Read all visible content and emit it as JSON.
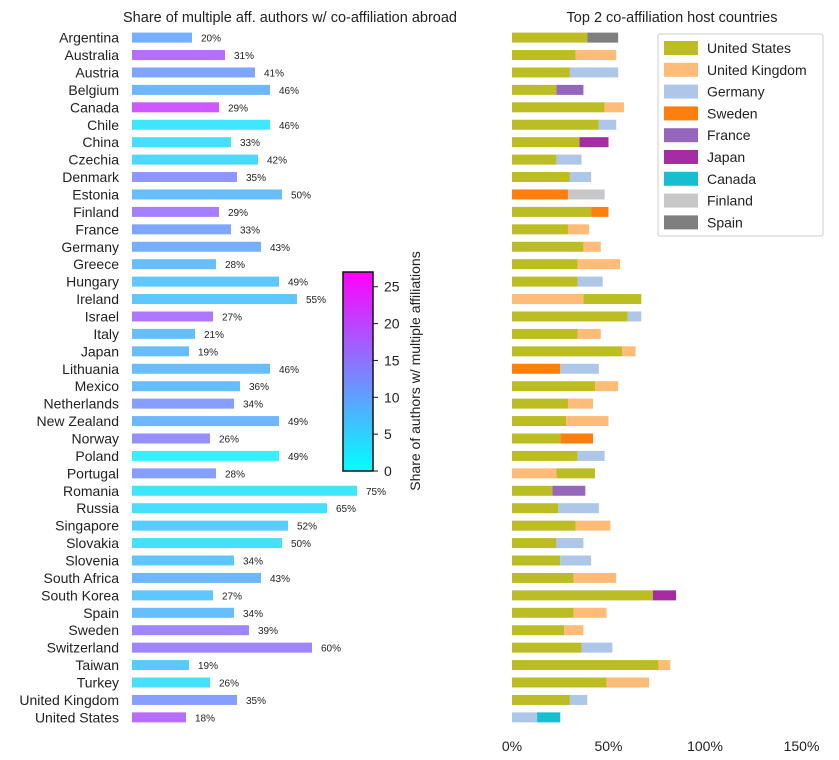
{
  "chart_data": [
    {
      "type": "bar",
      "orientation": "horizontal",
      "title": "Share of multiple aff. authors w/ co-affiliation abroad",
      "categories": [
        "Argentina",
        "Australia",
        "Austria",
        "Belgium",
        "Canada",
        "Chile",
        "China",
        "Czechia",
        "Denmark",
        "Estonia",
        "Finland",
        "France",
        "Germany",
        "Greece",
        "Hungary",
        "Ireland",
        "Israel",
        "Italy",
        "Japan",
        "Lithuania",
        "Mexico",
        "Netherlands",
        "New Zealand",
        "Norway",
        "Poland",
        "Portugal",
        "Romania",
        "Russia",
        "Singapore",
        "Slovakia",
        "Slovenia",
        "South Africa",
        "South Korea",
        "Spain",
        "Sweden",
        "Switzerland",
        "Taiwan",
        "Turkey",
        "United Kingdom",
        "United States"
      ],
      "values": [
        20,
        31,
        41,
        46,
        29,
        46,
        33,
        42,
        35,
        50,
        29,
        33,
        43,
        28,
        49,
        55,
        27,
        21,
        19,
        46,
        36,
        34,
        49,
        26,
        49,
        28,
        75,
        65,
        52,
        50,
        34,
        43,
        27,
        34,
        39,
        60,
        19,
        26,
        35,
        18
      ],
      "labels": [
        "20%",
        "31%",
        "41%",
        "46%",
        "29%",
        "46%",
        "33%",
        "42%",
        "35%",
        "50%",
        "29%",
        "33%",
        "43%",
        "28%",
        "49%",
        "55%",
        "27%",
        "21%",
        "19%",
        "46%",
        "36%",
        "34%",
        "49%",
        "26%",
        "49%",
        "28%",
        "75%",
        "65%",
        "52%",
        "50%",
        "34%",
        "43%",
        "27%",
        "34%",
        "39%",
        "60%",
        "19%",
        "26%",
        "35%",
        "18%"
      ],
      "color_values": [
        10,
        18,
        11,
        9,
        21,
        3,
        4,
        5,
        13,
        8,
        16,
        11,
        10,
        8,
        7,
        7,
        17,
        8,
        8,
        8,
        8,
        12,
        9,
        14,
        2,
        12,
        3,
        4,
        6,
        4,
        7,
        9,
        7,
        8,
        15,
        15,
        7,
        4,
        12,
        18
      ],
      "colorbar": {
        "label": "Share of authors w/ multiple affiliations",
        "ticks": [
          0,
          5,
          10,
          15,
          20,
          25
        ],
        "tick_labels": [
          "0",
          "5",
          "10",
          "15",
          "20",
          "25"
        ],
        "range": [
          0,
          27
        ],
        "colors": [
          "#00ffff",
          "#ff00ff"
        ]
      }
    },
    {
      "type": "bar",
      "orientation": "horizontal",
      "stacked": true,
      "title": "Top 2 co-affiliation host countries",
      "xlim": [
        0,
        150
      ],
      "x_ticks": [
        0,
        50,
        100,
        150
      ],
      "x_tick_labels": [
        "0%",
        "50%",
        "100%",
        "150%"
      ],
      "legend_position": "top-right",
      "legend": [
        {
          "name": "United States",
          "color": "#bcbd22"
        },
        {
          "name": "United Kingdom",
          "color": "#ffbb78"
        },
        {
          "name": "Germany",
          "color": "#aec7e8"
        },
        {
          "name": "Sweden",
          "color": "#ff7f0e"
        },
        {
          "name": "France",
          "color": "#9467bd"
        },
        {
          "name": "Japan",
          "color": "#a52ca2"
        },
        {
          "name": "Canada",
          "color": "#17becf"
        },
        {
          "name": "Finland",
          "color": "#c7c7c7"
        },
        {
          "name": "Spain",
          "color": "#7f7f7f"
        }
      ],
      "rows": [
        {
          "country": "Argentina",
          "segments": [
            {
              "host": "United States",
              "value": 39
            },
            {
              "host": "Spain",
              "value": 16
            }
          ]
        },
        {
          "country": "Australia",
          "segments": [
            {
              "host": "United States",
              "value": 33
            },
            {
              "host": "United Kingdom",
              "value": 21
            }
          ]
        },
        {
          "country": "Austria",
          "segments": [
            {
              "host": "United States",
              "value": 30
            },
            {
              "host": "Germany",
              "value": 25
            }
          ]
        },
        {
          "country": "Belgium",
          "segments": [
            {
              "host": "United States",
              "value": 23
            },
            {
              "host": "France",
              "value": 14
            }
          ]
        },
        {
          "country": "Canada",
          "segments": [
            {
              "host": "United States",
              "value": 48
            },
            {
              "host": "United Kingdom",
              "value": 10
            }
          ]
        },
        {
          "country": "Chile",
          "segments": [
            {
              "host": "United States",
              "value": 45
            },
            {
              "host": "Germany",
              "value": 9
            }
          ]
        },
        {
          "country": "China",
          "segments": [
            {
              "host": "United States",
              "value": 35
            },
            {
              "host": "Japan",
              "value": 15
            }
          ]
        },
        {
          "country": "Czechia",
          "segments": [
            {
              "host": "United States",
              "value": 23
            },
            {
              "host": "Germany",
              "value": 13
            }
          ]
        },
        {
          "country": "Denmark",
          "segments": [
            {
              "host": "United States",
              "value": 30
            },
            {
              "host": "Germany",
              "value": 11
            }
          ]
        },
        {
          "country": "Estonia",
          "segments": [
            {
              "host": "Sweden",
              "value": 29
            },
            {
              "host": "Finland",
              "value": 19
            }
          ]
        },
        {
          "country": "Finland",
          "segments": [
            {
              "host": "United States",
              "value": 41
            },
            {
              "host": "Sweden",
              "value": 9
            }
          ]
        },
        {
          "country": "France",
          "segments": [
            {
              "host": "United States",
              "value": 29
            },
            {
              "host": "United Kingdom",
              "value": 11
            }
          ]
        },
        {
          "country": "Germany",
          "segments": [
            {
              "host": "United States",
              "value": 37
            },
            {
              "host": "United Kingdom",
              "value": 9
            }
          ]
        },
        {
          "country": "Greece",
          "segments": [
            {
              "host": "United States",
              "value": 34
            },
            {
              "host": "United Kingdom",
              "value": 22
            }
          ]
        },
        {
          "country": "Hungary",
          "segments": [
            {
              "host": "United States",
              "value": 34
            },
            {
              "host": "Germany",
              "value": 13
            }
          ]
        },
        {
          "country": "Ireland",
          "segments": [
            {
              "host": "United Kingdom",
              "value": 37
            },
            {
              "host": "United States",
              "value": 30
            }
          ]
        },
        {
          "country": "Israel",
          "segments": [
            {
              "host": "United States",
              "value": 60
            },
            {
              "host": "Germany",
              "value": 7
            }
          ]
        },
        {
          "country": "Italy",
          "segments": [
            {
              "host": "United States",
              "value": 34
            },
            {
              "host": "United Kingdom",
              "value": 12
            }
          ]
        },
        {
          "country": "Japan",
          "segments": [
            {
              "host": "United States",
              "value": 57
            },
            {
              "host": "United Kingdom",
              "value": 7
            }
          ]
        },
        {
          "country": "Lithuania",
          "segments": [
            {
              "host": "Sweden",
              "value": 25
            },
            {
              "host": "Germany",
              "value": 20
            }
          ]
        },
        {
          "country": "Mexico",
          "segments": [
            {
              "host": "United States",
              "value": 43
            },
            {
              "host": "United Kingdom",
              "value": 12
            }
          ]
        },
        {
          "country": "Netherlands",
          "segments": [
            {
              "host": "United States",
              "value": 29
            },
            {
              "host": "United Kingdom",
              "value": 13
            }
          ]
        },
        {
          "country": "New Zealand",
          "segments": [
            {
              "host": "United States",
              "value": 28
            },
            {
              "host": "United Kingdom",
              "value": 22
            }
          ]
        },
        {
          "country": "Norway",
          "segments": [
            {
              "host": "United States",
              "value": 25
            },
            {
              "host": "Sweden",
              "value": 17
            }
          ]
        },
        {
          "country": "Poland",
          "segments": [
            {
              "host": "United States",
              "value": 34
            },
            {
              "host": "Germany",
              "value": 14
            }
          ]
        },
        {
          "country": "Portugal",
          "segments": [
            {
              "host": "United Kingdom",
              "value": 23
            },
            {
              "host": "United States",
              "value": 20
            }
          ]
        },
        {
          "country": "Romania",
          "segments": [
            {
              "host": "United States",
              "value": 21
            },
            {
              "host": "France",
              "value": 17
            }
          ]
        },
        {
          "country": "Russia",
          "segments": [
            {
              "host": "United States",
              "value": 24
            },
            {
              "host": "Germany",
              "value": 21
            }
          ]
        },
        {
          "country": "Singapore",
          "segments": [
            {
              "host": "United States",
              "value": 33
            },
            {
              "host": "United Kingdom",
              "value": 18
            }
          ]
        },
        {
          "country": "Slovakia",
          "segments": [
            {
              "host": "United States",
              "value": 23
            },
            {
              "host": "Germany",
              "value": 14
            }
          ]
        },
        {
          "country": "Slovenia",
          "segments": [
            {
              "host": "United States",
              "value": 25
            },
            {
              "host": "Germany",
              "value": 16
            }
          ]
        },
        {
          "country": "South Africa",
          "segments": [
            {
              "host": "United States",
              "value": 32
            },
            {
              "host": "United Kingdom",
              "value": 22
            }
          ]
        },
        {
          "country": "South Korea",
          "segments": [
            {
              "host": "United States",
              "value": 73
            },
            {
              "host": "Japan",
              "value": 12
            }
          ]
        },
        {
          "country": "Spain",
          "segments": [
            {
              "host": "United States",
              "value": 32
            },
            {
              "host": "United Kingdom",
              "value": 17
            }
          ]
        },
        {
          "country": "Sweden",
          "segments": [
            {
              "host": "United States",
              "value": 27
            },
            {
              "host": "United Kingdom",
              "value": 10
            }
          ]
        },
        {
          "country": "Switzerland",
          "segments": [
            {
              "host": "United States",
              "value": 36
            },
            {
              "host": "Germany",
              "value": 16
            }
          ]
        },
        {
          "country": "Taiwan",
          "segments": [
            {
              "host": "United States",
              "value": 76
            },
            {
              "host": "United Kingdom",
              "value": 6
            }
          ]
        },
        {
          "country": "Turkey",
          "segments": [
            {
              "host": "United States",
              "value": 49
            },
            {
              "host": "United Kingdom",
              "value": 22
            }
          ]
        },
        {
          "country": "United Kingdom",
          "segments": [
            {
              "host": "United States",
              "value": 30
            },
            {
              "host": "Germany",
              "value": 9
            }
          ]
        },
        {
          "country": "United States",
          "segments": [
            {
              "host": "Germany",
              "value": 13
            },
            {
              "host": "Canada",
              "value": 12
            }
          ]
        }
      ]
    }
  ]
}
